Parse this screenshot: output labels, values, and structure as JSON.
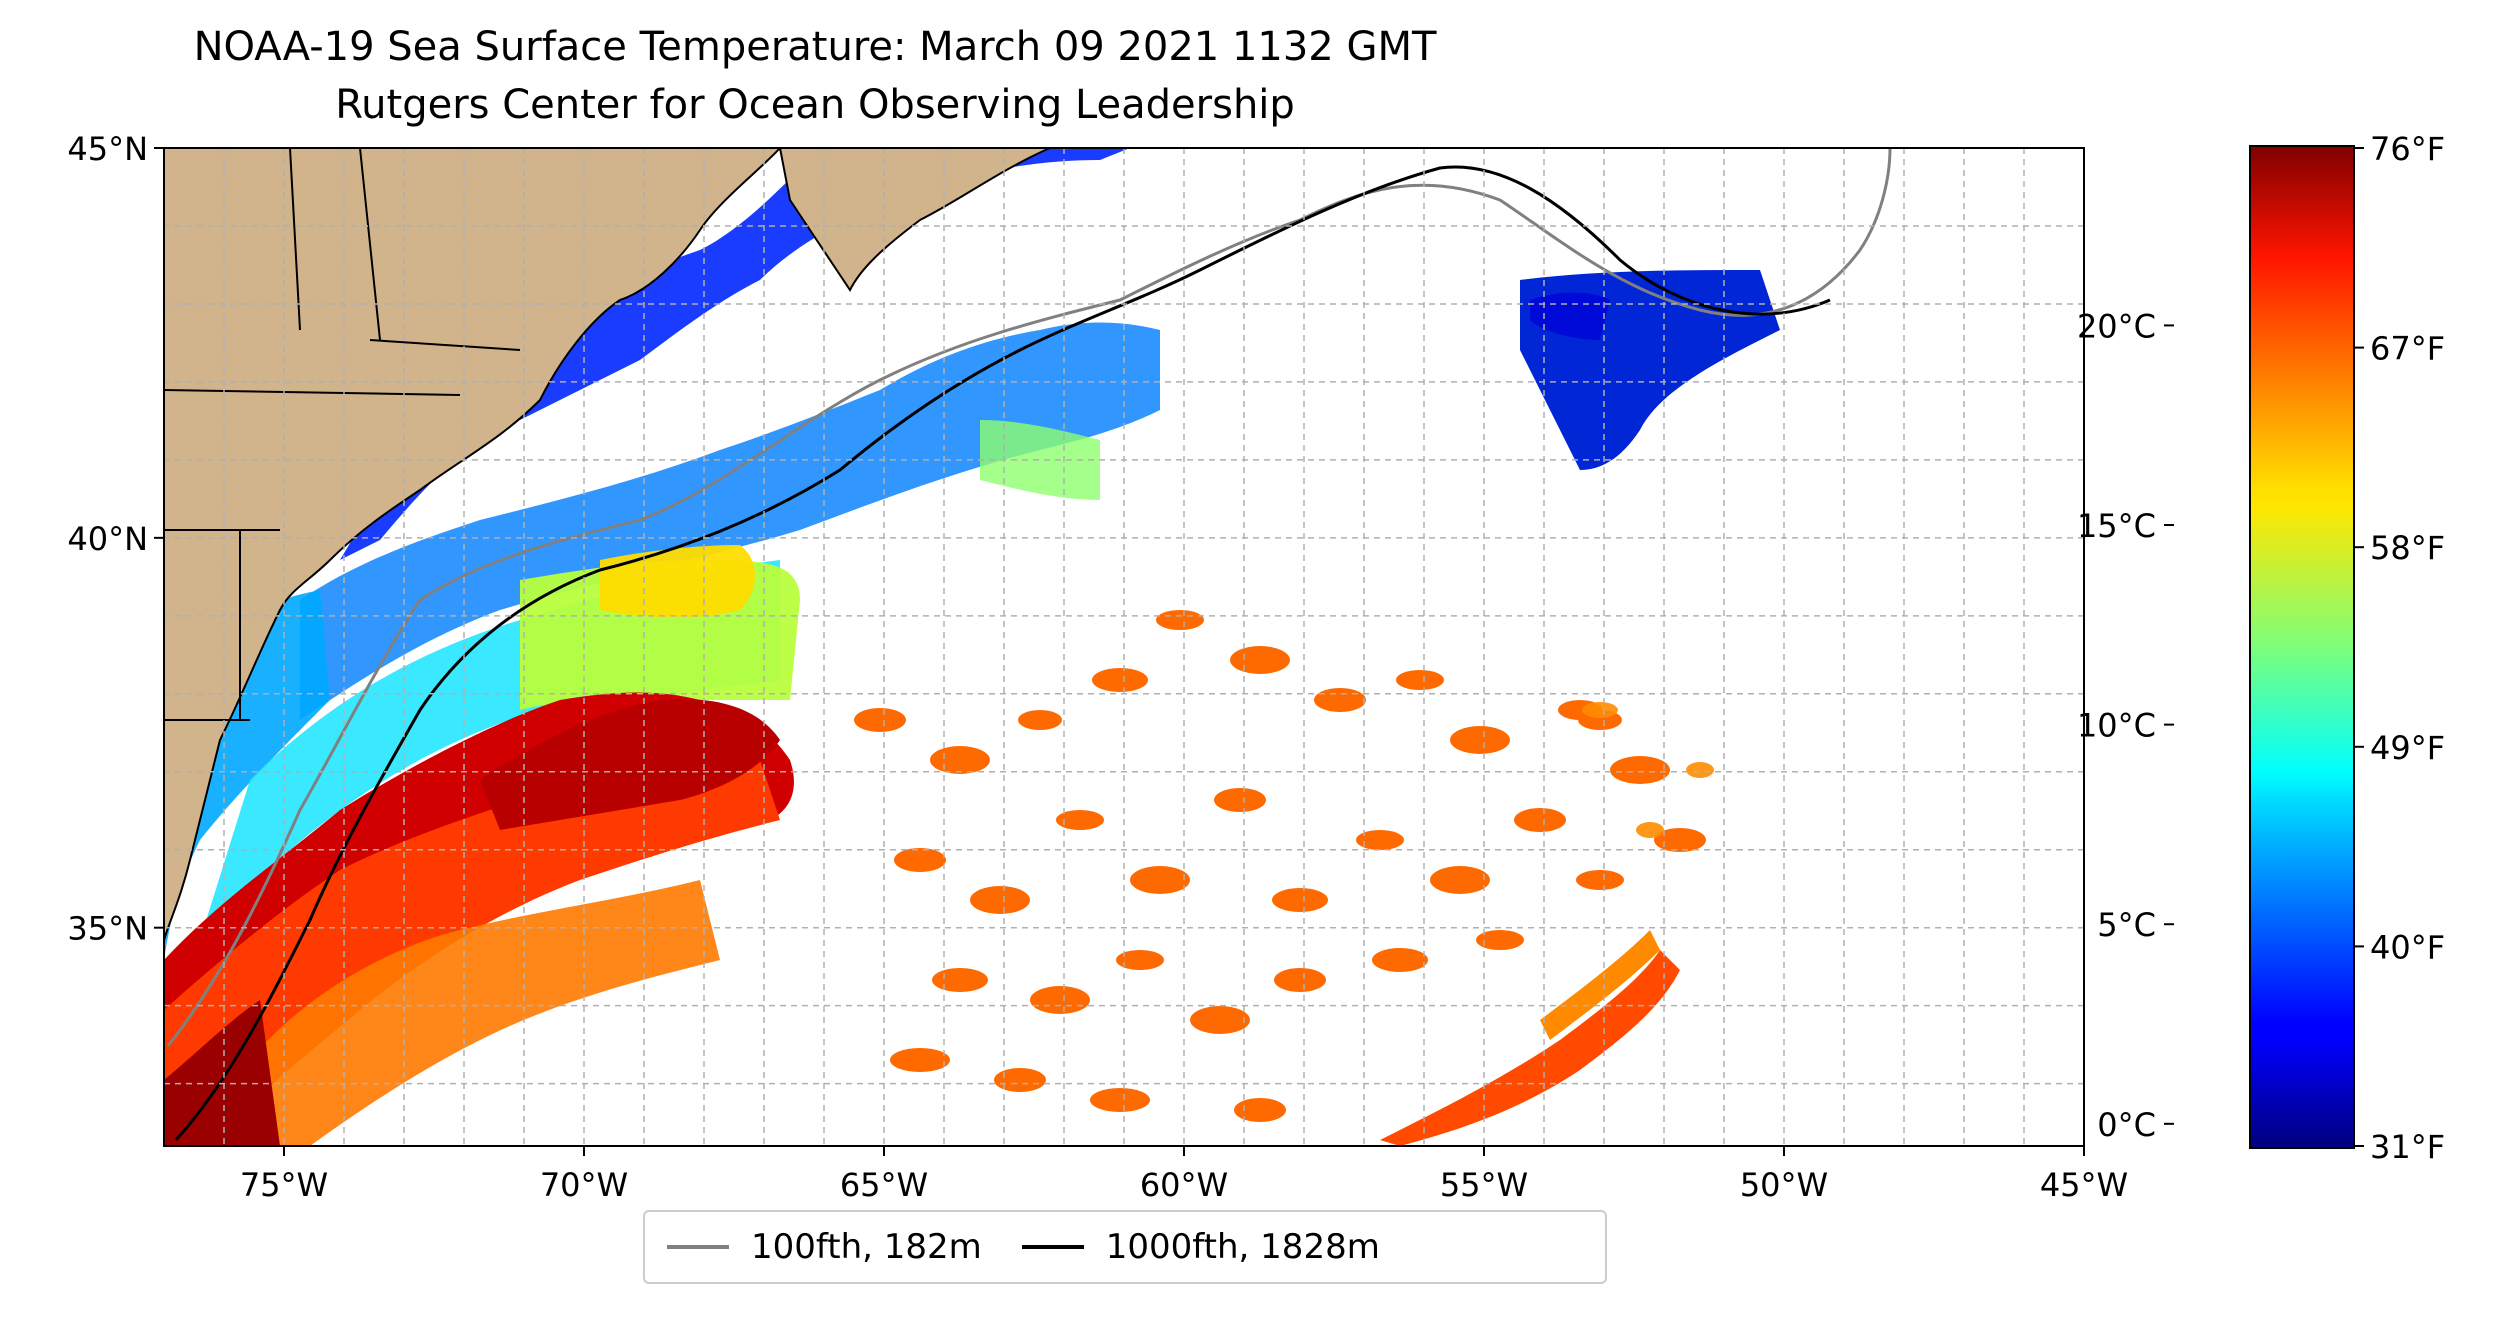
{
  "title": "NOAA-19 Sea Surface Temperature: March 09 2021 1132 GMT",
  "subtitle": "Rutgers Center for Ocean Observing Leadership",
  "map": {
    "lon_range": [
      -77,
      -45
    ],
    "lat_range": [
      32.2,
      45
    ],
    "x_ticks": [
      {
        "value": -75,
        "label": "75°W"
      },
      {
        "value": -70,
        "label": "70°W"
      },
      {
        "value": -65,
        "label": "65°W"
      },
      {
        "value": -60,
        "label": "60°W"
      },
      {
        "value": -55,
        "label": "55°W"
      },
      {
        "value": -50,
        "label": "50°W"
      },
      {
        "value": -45,
        "label": "45°W"
      }
    ],
    "y_ticks": [
      {
        "value": 45,
        "label": "45°N"
      },
      {
        "value": 40,
        "label": "40°N"
      },
      {
        "value": 35,
        "label": "35°N"
      }
    ],
    "land_color": "#d2b48c",
    "gridlines": true
  },
  "colorbar": {
    "celsius_ticks": [
      {
        "value": 20,
        "label": "20°C"
      },
      {
        "value": 15,
        "label": "15°C"
      },
      {
        "value": 10,
        "label": "10°C"
      },
      {
        "value": 5,
        "label": "5°C"
      },
      {
        "value": 0,
        "label": "0°C"
      }
    ],
    "fahrenheit_ticks": [
      {
        "value": 76,
        "label": "76°F"
      },
      {
        "value": 67,
        "label": "67°F"
      },
      {
        "value": 58,
        "label": "58°F"
      },
      {
        "value": 49,
        "label": "49°F"
      },
      {
        "value": 40,
        "label": "40°F"
      },
      {
        "value": 31,
        "label": "31°F"
      }
    ],
    "f_range": [
      31,
      76
    ],
    "colormap": "jet"
  },
  "legend": {
    "items": [
      {
        "label": "100fth, 182m",
        "color": "#808080"
      },
      {
        "label": "1000fth, 1828m",
        "color": "#000000"
      }
    ]
  }
}
